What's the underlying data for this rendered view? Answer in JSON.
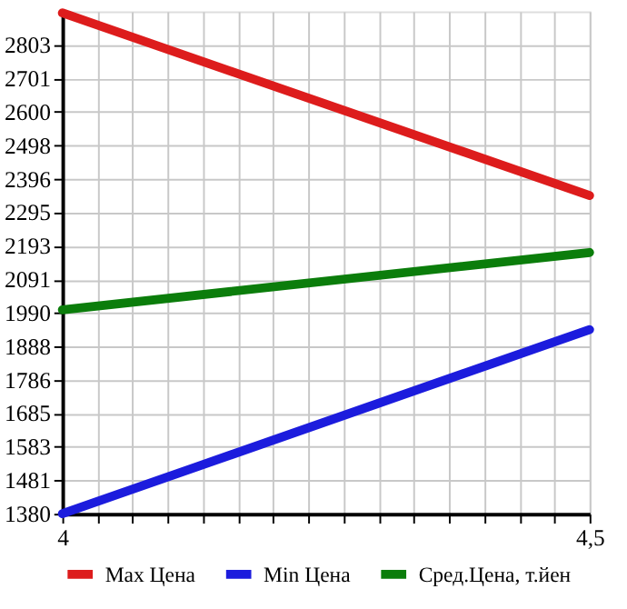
{
  "chart_data": {
    "type": "line",
    "x": [
      4,
      4.5
    ],
    "series": [
      {
        "name": "Max Цена",
        "color": "#dd1c1c",
        "values": [
          2900,
          2346
        ]
      },
      {
        "name": "Min Цена",
        "color": "#1c1cdd",
        "values": [
          1380,
          1939
        ]
      },
      {
        "name": "Сред.Цена, т.йен",
        "color": "#0b7d0b",
        "values": [
          1999,
          2173
        ]
      }
    ],
    "xlim": [
      4,
      4.5
    ],
    "xticks": [
      4,
      {
        "value": 4.0333,
        "label": null
      },
      {
        "value": 4.0667,
        "label": null
      },
      {
        "value": 4.1,
        "label": null
      },
      {
        "value": 4.1333,
        "label": null
      },
      {
        "value": 4.1667,
        "label": null
      },
      {
        "value": 4.2,
        "label": null
      },
      {
        "value": 4.2333,
        "label": null
      },
      {
        "value": 4.2667,
        "label": null
      },
      {
        "value": 4.3,
        "label": null
      },
      {
        "value": 4.3333,
        "label": null
      },
      {
        "value": 4.3667,
        "label": null
      },
      {
        "value": 4.4,
        "label": null
      },
      {
        "value": 4.4333,
        "label": null
      },
      {
        "value": 4.4667,
        "label": null
      },
      {
        "value": 4.5,
        "label": "4,5"
      }
    ],
    "ylim": [
      1380,
      2905
    ],
    "yticks": [
      1380,
      1481,
      1583,
      1685,
      1786,
      1888,
      1990,
      2091,
      2193,
      2295,
      2396,
      2498,
      2600,
      2701,
      2803
    ],
    "grid": true,
    "legend": "bottom",
    "marker": "none",
    "line_style": "solid"
  }
}
